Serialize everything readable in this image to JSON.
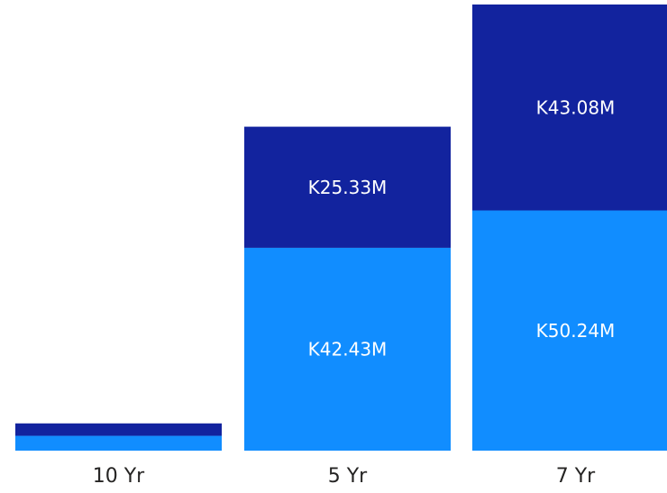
{
  "chart_data": {
    "type": "bar",
    "stacked": true,
    "categories": [
      "10 Yr",
      "5 Yr",
      "7 Yr"
    ],
    "series": [
      {
        "values": [
          3.1,
          42.43,
          50.24
        ],
        "data_labels": [
          "",
          "K42.43M",
          "K50.24M"
        ],
        "color": "#118DFF"
      },
      {
        "values": [
          2.6,
          25.33,
          43.08
        ],
        "data_labels": [
          "",
          "K25.33M",
          "K43.08M"
        ],
        "color": "#12239E"
      }
    ],
    "ylim": [
      0,
      93.32
    ],
    "grid": false,
    "legend": "none",
    "title": "",
    "xlabel": "",
    "ylabel": ""
  }
}
